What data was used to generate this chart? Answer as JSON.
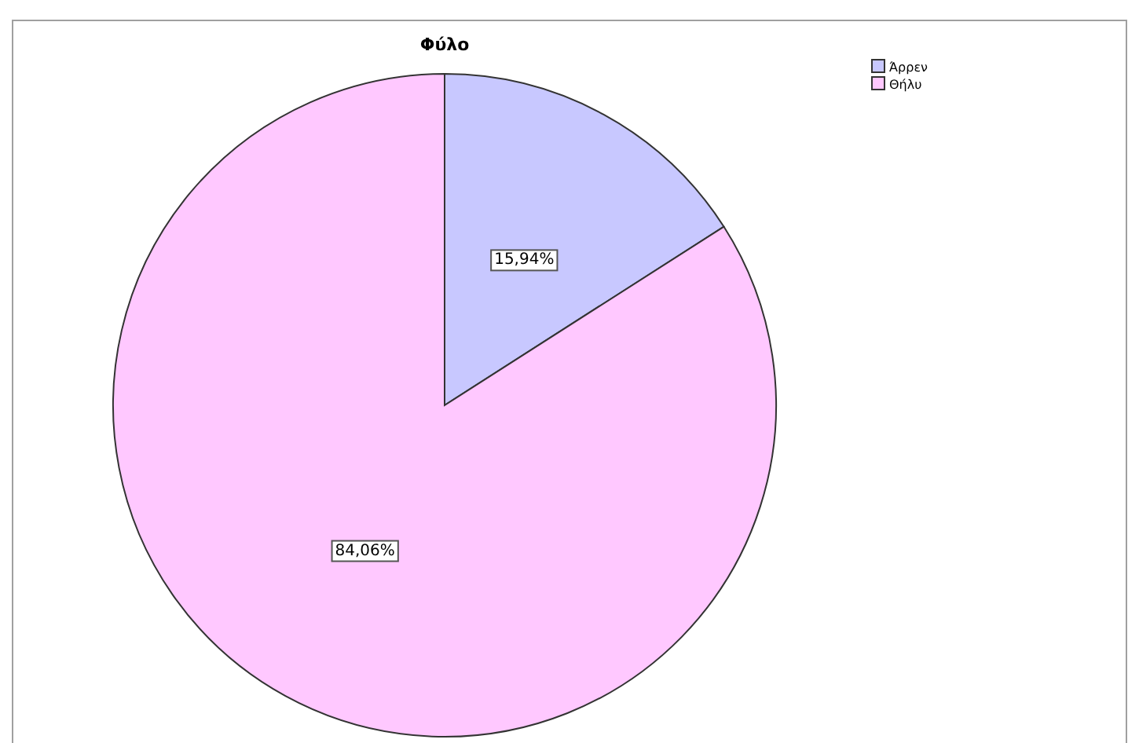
{
  "chart_data": {
    "type": "pie",
    "title": "Φύλο",
    "categories": [
      "Άρρεν",
      "Θήλυ"
    ],
    "values": [
      15.94,
      84.06
    ],
    "colors": [
      "#c8c8ff",
      "#ffc8ff"
    ],
    "value_labels": [
      "15,94%",
      "84,06%"
    ],
    "legend": "top right"
  }
}
